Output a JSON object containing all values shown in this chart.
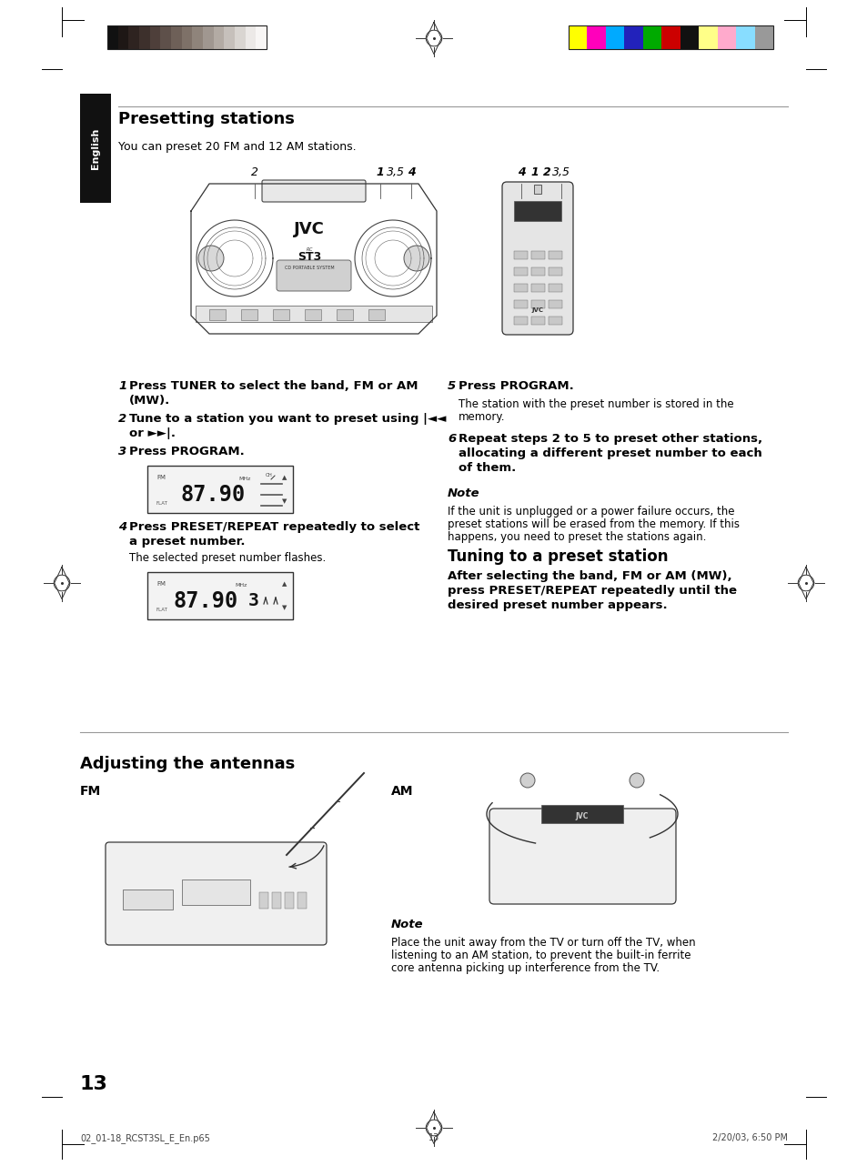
{
  "bg_color": "#ffffff",
  "page_width": 9.54,
  "page_height": 12.82,
  "dpi": 100,
  "section1_title": "Presetting stations",
  "section1_subtitle": "You can preset 20 FM and 12 AM stations.",
  "section2_title": "Tuning to a preset station",
  "section3_title": "Adjusting the antennas",
  "fm_label": "FM",
  "am_label": "AM",
  "note1_title": "Note",
  "note1_text1": "If the unit is unplugged or a power failure occurs, the",
  "note1_text2": "preset stations will be erased from the memory. If this",
  "note1_text3": "happens, you need to preset the stations again.",
  "note2_title": "Note",
  "note2_text1": "Place the unit away from the TV or turn off the TV, when",
  "note2_text2": "listening to an AM station, to prevent the built-in ferrite",
  "note2_text3": "core antenna picking up interference from the TV.",
  "page_number": "13",
  "footer_left": "02_01-18_RCST3SL_E_En.p65",
  "footer_mid": "13",
  "footer_right": "2/20/03, 6:50 PM",
  "english_tab_text": "English",
  "english_tab_bg": "#111111",
  "english_tab_fg": "#ffffff",
  "colors_left": [
    "#111111",
    "#1e1715",
    "#2e2320",
    "#3d302c",
    "#4e3f3a",
    "#5e504a",
    "#6e6058",
    "#7e7168",
    "#8f847b",
    "#a09790",
    "#b3aba4",
    "#c6c0bb",
    "#d9d5d1",
    "#ece9e7",
    "#f8f6f5"
  ],
  "colors_right": [
    "#ffff00",
    "#ff00bb",
    "#00aaff",
    "#2222bb",
    "#00aa00",
    "#cc0000",
    "#111111",
    "#ffff88",
    "#ffaacc",
    "#88ddff",
    "#999999"
  ],
  "section_line_color": "#999999",
  "text_color": "#000000",
  "title_color": "#000000"
}
